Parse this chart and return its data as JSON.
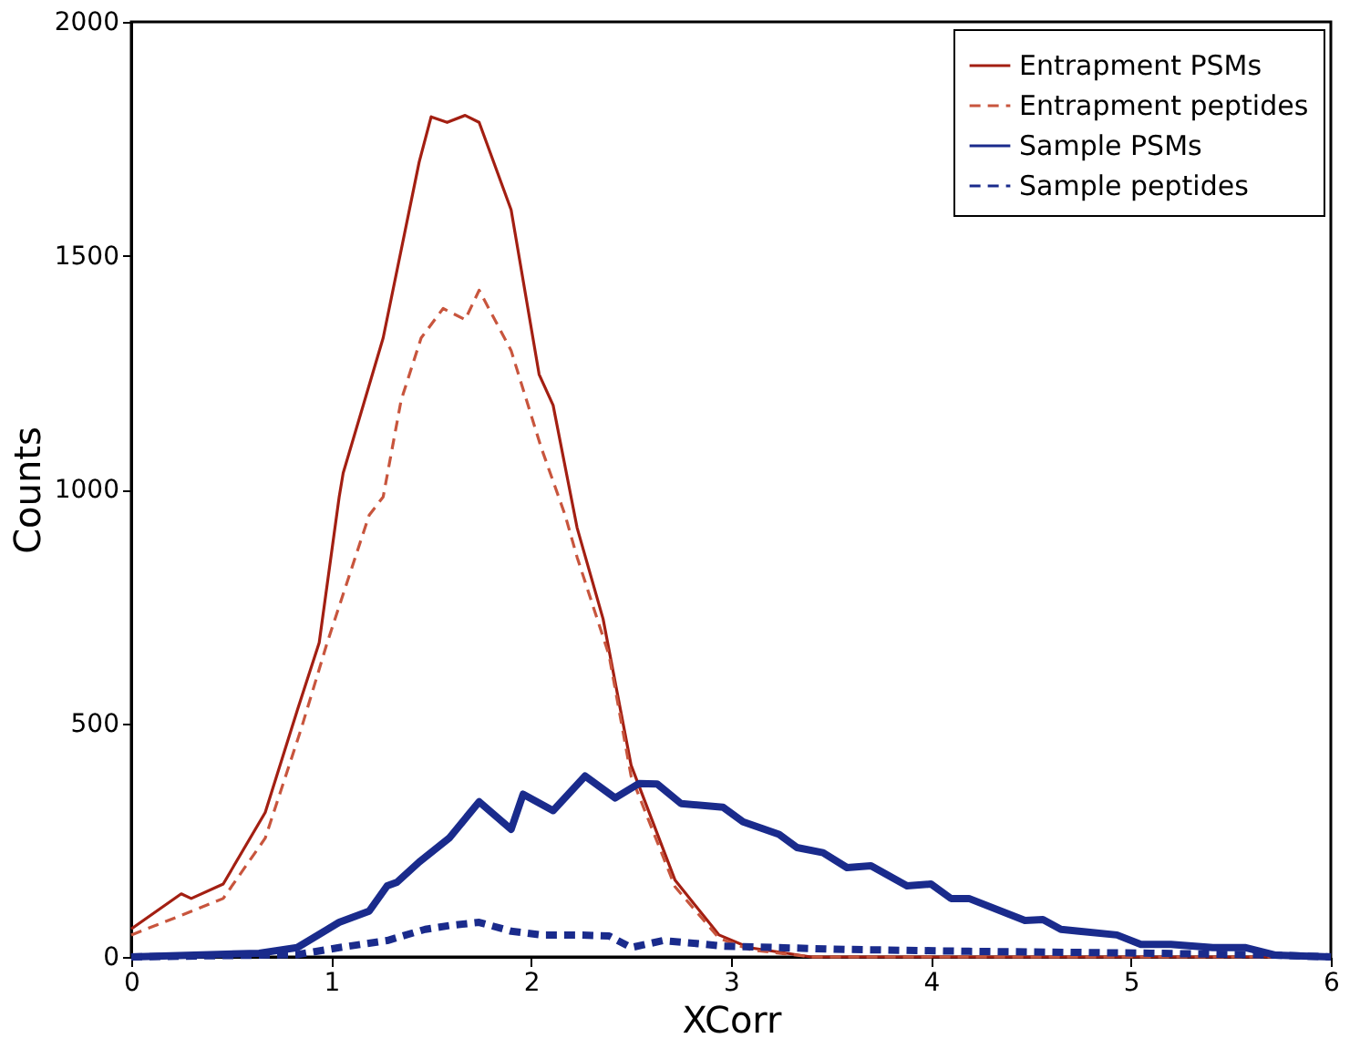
{
  "chart_data": {
    "type": "line",
    "xlabel": "XCorr",
    "ylabel": "Counts",
    "xlim": [
      0,
      6
    ],
    "ylim": [
      0,
      2000
    ],
    "xticks": [
      0,
      1,
      2,
      3,
      4,
      5,
      6
    ],
    "yticks": [
      0,
      500,
      1000,
      1500,
      2000
    ],
    "grid": false,
    "legend": "top right",
    "marker": "none",
    "series": [
      {
        "name": "Entrapment PSMs",
        "color": "#a31f12",
        "line_style": "solid",
        "x": [
          0,
          0.25,
          0.3,
          0.46,
          0.67,
          0.83,
          0.94,
          1.04,
          1.06,
          1.26,
          1.44,
          1.5,
          1.58,
          1.67,
          1.74,
          1.9,
          2.04,
          2.11,
          2.23,
          2.36,
          2.5,
          2.72,
          2.94,
          3.09,
          3.4,
          6.0
        ],
        "values": [
          60,
          135,
          125,
          156,
          309,
          527,
          672,
          984,
          1035,
          1324,
          1700,
          1797,
          1785,
          1800,
          1785,
          1598,
          1246,
          1180,
          918,
          723,
          410,
          164,
          47,
          20,
          0,
          0
        ]
      },
      {
        "name": "Entrapment peptides",
        "color": "#c8553d",
        "line_style": "dashed",
        "x": [
          0,
          0.28,
          0.46,
          0.67,
          0.85,
          0.98,
          1.19,
          1.26,
          1.35,
          1.45,
          1.56,
          1.67,
          1.74,
          1.9,
          2.05,
          2.17,
          2.23,
          2.39,
          2.5,
          2.72,
          2.94,
          3.1,
          3.4,
          6.0
        ],
        "values": [
          47,
          94,
          125,
          254,
          488,
          672,
          945,
          984,
          1191,
          1324,
          1387,
          1363,
          1426,
          1297,
          1090,
          945,
          855,
          645,
          387,
          150,
          40,
          15,
          0,
          0
        ]
      },
      {
        "name": "Sample PSMs",
        "color": "#1a2b8c",
        "line_style": "solid",
        "x": [
          0,
          0.64,
          0.83,
          1.04,
          1.19,
          1.28,
          1.33,
          1.44,
          1.59,
          1.74,
          1.9,
          1.96,
          2.11,
          2.27,
          2.42,
          2.54,
          2.63,
          2.75,
          2.96,
          3.06,
          3.24,
          3.33,
          3.46,
          3.58,
          3.7,
          3.88,
          4.0,
          4.1,
          4.19,
          4.47,
          4.56,
          4.65,
          4.74,
          4.93,
          5.05,
          5.2,
          5.41,
          5.57,
          5.72,
          6.0
        ],
        "values": [
          0,
          8,
          20,
          74,
          98,
          152,
          160,
          203,
          254,
          332,
          273,
          348,
          313,
          387,
          340,
          371,
          370,
          328,
          320,
          289,
          262,
          234,
          223,
          191,
          195,
          152,
          156,
          125,
          125,
          78,
          80,
          59,
          55,
          47,
          27,
          27,
          20,
          20,
          4,
          0
        ]
      },
      {
        "name": "Sample peptides",
        "color": "#1a2b8c",
        "line_style": "dashed",
        "x": [
          0,
          0.83,
          1.04,
          1.28,
          1.47,
          1.59,
          1.74,
          1.9,
          2.05,
          2.23,
          2.39,
          2.5,
          2.66,
          2.87,
          2.96,
          3.58,
          4.19,
          5.1,
          5.72,
          6.0
        ],
        "values": [
          0,
          5,
          20,
          35,
          59,
          67,
          74,
          55,
          47,
          47,
          45,
          20,
          35,
          27,
          23,
          16,
          12,
          8,
          4,
          0
        ]
      }
    ]
  }
}
